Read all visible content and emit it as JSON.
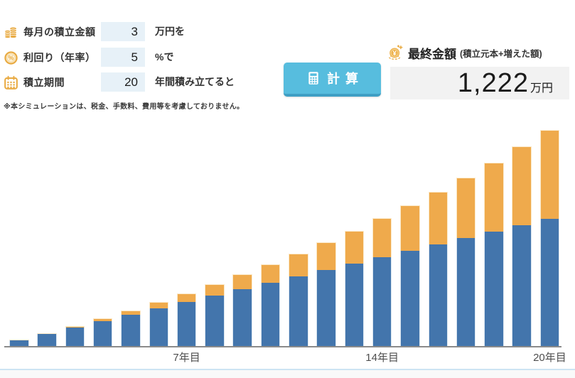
{
  "form": {
    "rows": [
      {
        "icon": "coins-icon",
        "label": "毎月の積立金額",
        "value": "3",
        "suffix": "万円を"
      },
      {
        "icon": "percent-icon",
        "label": "利回り（年率）",
        "value": "5",
        "suffix": "%で"
      },
      {
        "icon": "calendar-icon",
        "label": "積立期間",
        "value": "20",
        "suffix": "年間積み立てると"
      }
    ],
    "note": "※本シミュレーションは、税金、手数料、費用等を考慮しておりません。"
  },
  "calc_button": {
    "label": "計算",
    "icon": "calculator-icon"
  },
  "result": {
    "title": "最終金額",
    "subtitle": "(積立元本+増えた額)",
    "icon": "coin-yen-icon",
    "value": "1,222",
    "unit": "万円"
  },
  "colors": {
    "bar_principal": "#4375ac",
    "bar_principal_border": "#d9e5f0",
    "bar_gain": "#efaa4c",
    "bar_gain_border": "#fbe9c8",
    "input_bg": "#e7f1f8",
    "button_bg": "#57bdde",
    "button_edge": "#3f9fc4",
    "result_box_bg": "#f2f2f2",
    "icon_gold": "#e9ab43",
    "divider_blue": "#cde4f3",
    "axis_gray": "#8b8b8b"
  },
  "chart_data": {
    "type": "bar",
    "stacked": true,
    "title": "",
    "xlabel": "",
    "ylabel": "",
    "grid": false,
    "legend": "none",
    "x": [
      1,
      2,
      3,
      4,
      5,
      6,
      7,
      8,
      9,
      10,
      11,
      12,
      13,
      14,
      15,
      16,
      17,
      18,
      19,
      20
    ],
    "x_suffix": "年目",
    "series": [
      {
        "name": "積立元本",
        "color": "#4375ac",
        "values": [
          36,
          72,
          108,
          144,
          180,
          216,
          252,
          288,
          324,
          360,
          396,
          432,
          468,
          504,
          540,
          576,
          612,
          648,
          684,
          720
        ]
      },
      {
        "name": "増えた額",
        "color": "#efaa4c",
        "values": [
          1.0,
          3.8,
          8.5,
          15.3,
          24.3,
          35.5,
          49.0,
          65.0,
          83.6,
          105.0,
          129.2,
          156.4,
          186.8,
          220.5,
          257.7,
          298.6,
          343.3,
          392.0,
          445.0,
          502.4
        ]
      }
    ],
    "totals": [
      37.0,
      75.8,
      116.5,
      159.3,
      204.3,
      251.5,
      301.0,
      353.0,
      407.6,
      465.0,
      525.2,
      588.4,
      654.8,
      724.5,
      797.7,
      874.6,
      955.3,
      1040.0,
      1129.0,
      1222.4
    ],
    "ylim": [
      0,
      1230
    ],
    "x_ticks": [
      {
        "year": 7,
        "label": "7年目"
      },
      {
        "year": 14,
        "label": "14年目"
      },
      {
        "year": 20,
        "label": "20年目"
      }
    ]
  }
}
